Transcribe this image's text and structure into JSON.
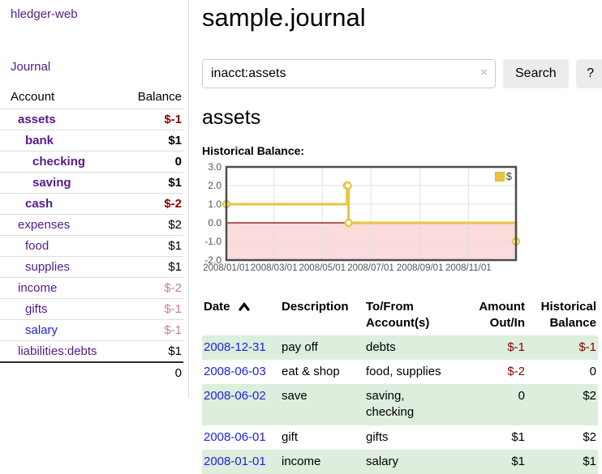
{
  "app": {
    "brand": "hledger-web",
    "nav_journal": "Journal"
  },
  "sidebar": {
    "header": {
      "account": "Account",
      "balance": "Balance"
    },
    "rows": [
      {
        "name": "assets",
        "depth": 1,
        "bold": true,
        "balance": "$-1",
        "balance_class": "neg"
      },
      {
        "name": "bank",
        "depth": 2,
        "bold": true,
        "balance": "$1",
        "balance_class": ""
      },
      {
        "name": "checking",
        "depth": 3,
        "bold": true,
        "balance": "0",
        "balance_class": ""
      },
      {
        "name": "saving",
        "depth": 3,
        "bold": true,
        "balance": "$1",
        "balance_class": ""
      },
      {
        "name": "cash",
        "depth": 2,
        "bold": true,
        "balance": "$-2",
        "balance_class": "neg"
      },
      {
        "name": "expenses",
        "depth": 1,
        "bold": false,
        "balance": "$2",
        "balance_class": ""
      },
      {
        "name": "food",
        "depth": 2,
        "bold": false,
        "balance": "$1",
        "balance_class": ""
      },
      {
        "name": "supplies",
        "depth": 2,
        "bold": false,
        "balance": "$1",
        "balance_class": ""
      },
      {
        "name": "income",
        "depth": 1,
        "bold": false,
        "balance": "$-2",
        "balance_class": "negfade"
      },
      {
        "name": "gifts",
        "depth": 2,
        "bold": false,
        "balance": "$-1",
        "balance_class": "negfade"
      },
      {
        "name": "salary",
        "depth": 2,
        "bold": false,
        "balance": "$-1",
        "balance_class": "negfade",
        "link_blue": true
      },
      {
        "name": "liabilities:debts",
        "depth": 1,
        "bold": false,
        "balance": "$1",
        "balance_class": ""
      }
    ],
    "total": "0"
  },
  "header": {
    "title": "sample.journal"
  },
  "search": {
    "value": "inacct:assets",
    "clear_icon": "×",
    "button_label": "Search",
    "help_label": "?"
  },
  "account_page": {
    "title": "assets",
    "chart_label": "Historical Balance:"
  },
  "chart_data": {
    "type": "line",
    "step": true,
    "title": "Historical Balance",
    "series": [
      {
        "name": "$",
        "color": "#e7c53e",
        "points": [
          [
            "2008-01-01",
            1
          ],
          [
            "2008-06-01",
            2
          ],
          [
            "2008-06-02",
            2
          ],
          [
            "2008-06-03",
            0
          ],
          [
            "2008-12-31",
            -1
          ]
        ]
      }
    ],
    "x_range": [
      "2008-01-01",
      "2008-12-31"
    ],
    "ylim": [
      -2,
      3
    ],
    "y_ticks": [
      "3.0",
      "2.0",
      "1.0",
      "0.0",
      "-1.0",
      "-2.0"
    ],
    "x_ticks": [
      "2008/01/01",
      "2008/03/01",
      "2008/05/01",
      "2008/07/01",
      "2008/09/01",
      "2008/11/01"
    ],
    "grid": true,
    "legend": {
      "label": "$",
      "position": "top-right"
    },
    "negative_region_color": "#fbdbdb",
    "zero_line_color": "#880000",
    "grid_color": "#e0e0e0",
    "border_color": "#4d4d4d"
  },
  "register": {
    "columns": [
      {
        "label": "Date",
        "sorted": "ascending"
      },
      {
        "label": "Description"
      },
      {
        "label": "To/From Account(s)"
      },
      {
        "label": "Amount Out/In",
        "align": "right"
      },
      {
        "label": "Historical Balance",
        "align": "right"
      }
    ],
    "rows": [
      {
        "date": "2008-12-31",
        "description": "pay off",
        "accounts_lines": [
          "debts"
        ],
        "amount": "$-1",
        "amount_negative": true,
        "balance": "$-1",
        "balance_negative": true
      },
      {
        "date": "2008-06-03",
        "description": "eat & shop",
        "accounts_lines": [
          "food, supplies"
        ],
        "amount": "$-2",
        "amount_negative": true,
        "balance": "0",
        "balance_negative": false
      },
      {
        "date": "2008-06-02",
        "description": "save",
        "accounts_lines": [
          "saving,",
          "checking"
        ],
        "amount": "0",
        "amount_negative": false,
        "balance": "$2",
        "balance_negative": false
      },
      {
        "date": "2008-06-01",
        "description": "gift",
        "accounts_lines": [
          "gifts"
        ],
        "amount": "$1",
        "amount_negative": false,
        "balance": "$2",
        "balance_negative": false
      },
      {
        "date": "2008-01-01",
        "description": "income",
        "accounts_lines": [
          "salary"
        ],
        "amount": "$1",
        "amount_negative": false,
        "balance": "$1",
        "balance_negative": false
      }
    ]
  },
  "colors": {
    "accent_purple": "#551a8b",
    "link_blue": "#2222dd",
    "negative": "#880000",
    "negative_faded": "#c48484",
    "row_highlight_green": "#ddeedd",
    "chart_gold": "#e7c53e",
    "chart_negative_bg": "#fbdbdb"
  }
}
